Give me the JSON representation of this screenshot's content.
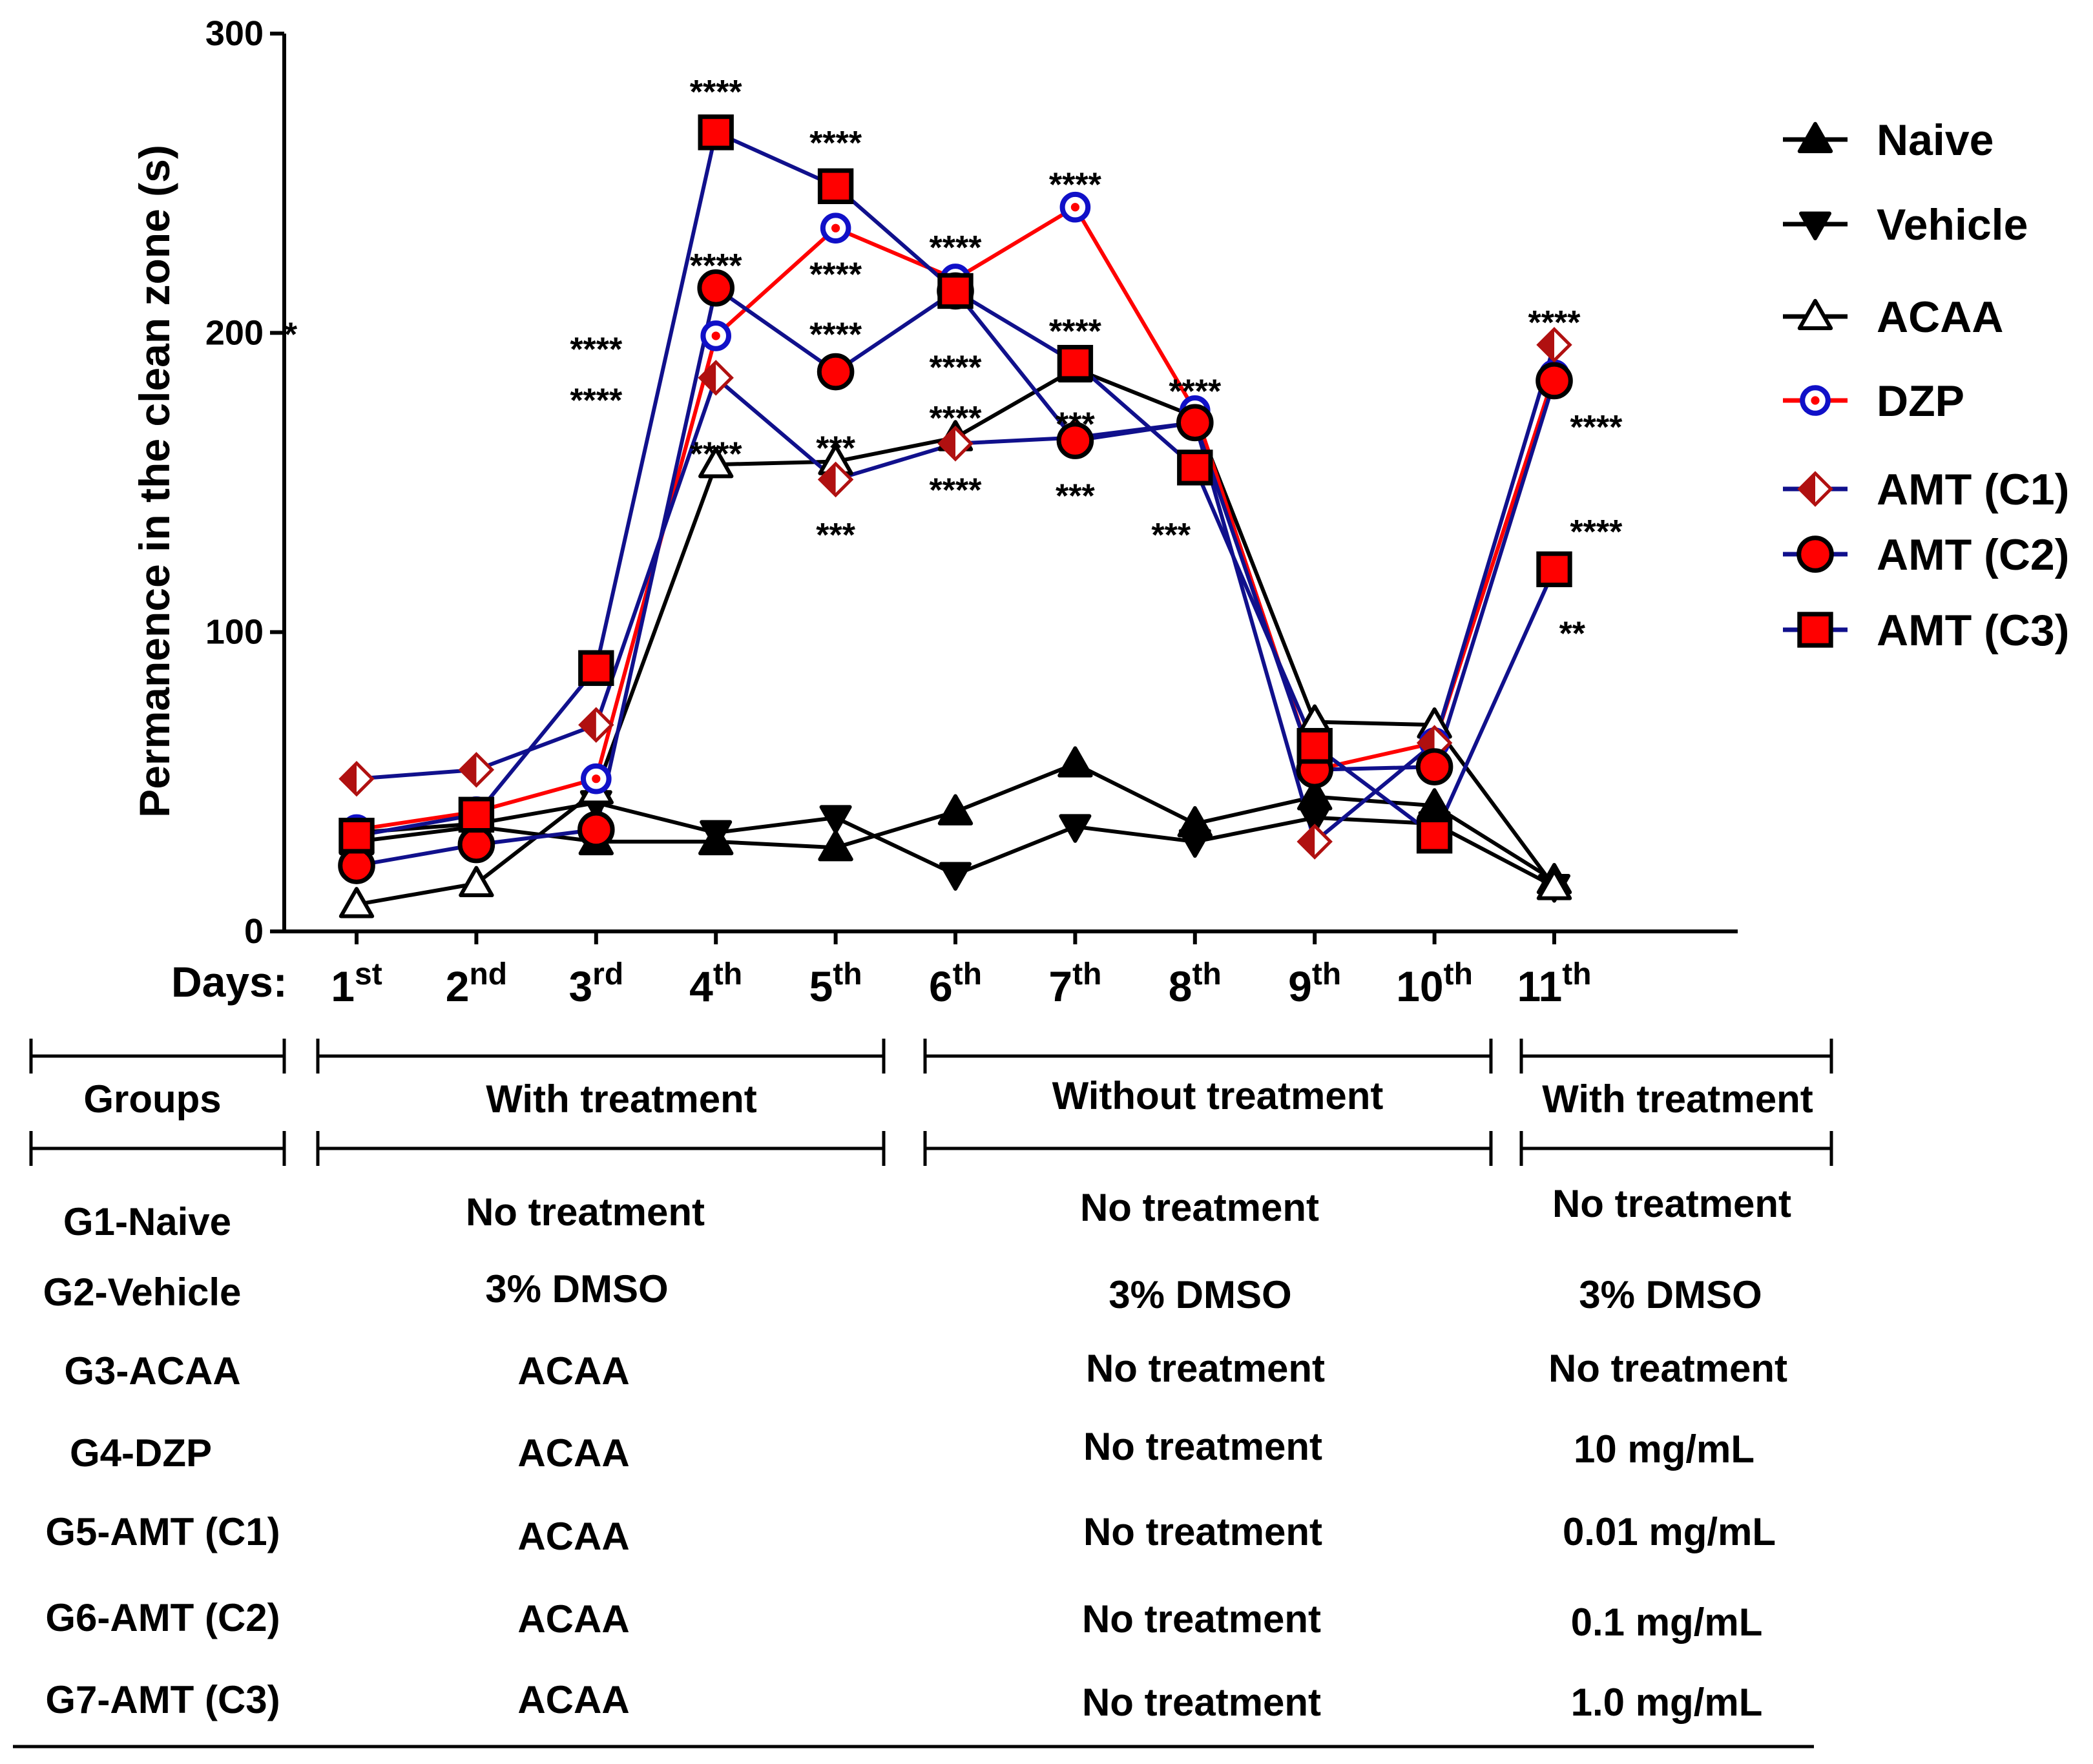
{
  "chart_data": {
    "type": "line",
    "title": "",
    "xlabel": "Days:",
    "ylabel": "Permanence in the clean zone (s)",
    "ylim": [
      0,
      300
    ],
    "yticks": [
      "0",
      "100",
      "200",
      "300"
    ],
    "categories": [
      {
        "num": "1",
        "sup": "st"
      },
      {
        "num": "2",
        "sup": "nd"
      },
      {
        "num": "3",
        "sup": "rd"
      },
      {
        "num": "4",
        "sup": "th"
      },
      {
        "num": "5",
        "sup": "th"
      },
      {
        "num": "6",
        "sup": "th"
      },
      {
        "num": "7",
        "sup": "th"
      },
      {
        "num": "8",
        "sup": "th"
      },
      {
        "num": "9",
        "sup": "th"
      },
      {
        "num": "10",
        "sup": "th"
      },
      {
        "num": "11",
        "sup": "th"
      }
    ],
    "series": [
      {
        "name": "Naive",
        "marker": "tri-up-filled",
        "line_color": "#000000",
        "marker_fill": "#000000",
        "marker_stroke": "#000000",
        "values": [
          30,
          35,
          30,
          30,
          28,
          40,
          56,
          36,
          45,
          42,
          17
        ]
      },
      {
        "name": "Vehicle",
        "marker": "tri-down-filled",
        "line_color": "#000000",
        "marker_fill": "#000000",
        "marker_stroke": "#000000",
        "values": [
          33,
          36,
          43,
          33,
          38,
          19,
          35,
          30,
          38,
          36,
          15
        ]
      },
      {
        "name": "ACAA",
        "marker": "tri-up-open",
        "line_color": "#000000",
        "marker_fill": "#ffffff",
        "marker_stroke": "#000000",
        "values": [
          9,
          16,
          47,
          156,
          157,
          165,
          188,
          172,
          70,
          69,
          15
        ]
      },
      {
        "name": "DZP",
        "marker": "circle-open",
        "line_color": "#ff0000",
        "marker_fill": "#ffffff",
        "marker_stroke": "#1010c8",
        "values": [
          34,
          40,
          51,
          199,
          235,
          218,
          242,
          174,
          54,
          63,
          186
        ]
      },
      {
        "name": "AMT (C1)",
        "marker": "diamond-half",
        "line_color": "#10108c",
        "marker_fill": "#ffffff",
        "marker_stroke": "#b01010",
        "values": [
          51,
          54,
          69,
          185,
          151,
          163,
          165,
          170,
          30,
          63,
          196
        ]
      },
      {
        "name": "AMT (C2)",
        "marker": "circle-filled",
        "line_color": "#10108c",
        "marker_fill": "#ff0000",
        "marker_stroke": "#000000",
        "values": [
          22,
          29,
          34,
          215,
          187,
          214,
          164,
          170,
          54,
          55,
          184
        ]
      },
      {
        "name": "AMT (C3)",
        "marker": "square-filled",
        "line_color": "#10108c",
        "marker_fill": "#ff0000",
        "marker_stroke": "#000000",
        "values": [
          32,
          39,
          88,
          267,
          249,
          214,
          190,
          155,
          62,
          32,
          121
        ]
      }
    ],
    "annotations": [
      {
        "text": "****",
        "day": 4,
        "y": 281
      },
      {
        "text": "****",
        "day": 5,
        "y": 264
      },
      {
        "text": "****",
        "day": 6,
        "y": 229
      },
      {
        "text": "****",
        "day": 7,
        "y": 250
      },
      {
        "text": "****",
        "day": 4,
        "y": 223
      },
      {
        "text": "****",
        "day": 5,
        "y": 220
      },
      {
        "text": "****",
        "day": 3,
        "y": 195
      },
      {
        "text": "****",
        "day": 3,
        "y": 178
      },
      {
        "text": "****",
        "day": 5,
        "y": 200
      },
      {
        "text": "****",
        "day": 6,
        "y": 189
      },
      {
        "text": "****",
        "day": 7,
        "y": 201
      },
      {
        "text": "****",
        "day": 8,
        "y": 181
      },
      {
        "text": "****",
        "day": 4,
        "y": 160
      },
      {
        "text": "***",
        "day": 5,
        "y": 162
      },
      {
        "text": "****",
        "day": 6,
        "y": 172
      },
      {
        "text": "***",
        "day": 7,
        "y": 170
      },
      {
        "text": "****",
        "day": 6,
        "y": 148
      },
      {
        "text": "***",
        "day": 7,
        "y": 146
      },
      {
        "text": "***",
        "day": 5,
        "y": 133
      },
      {
        "text": "***",
        "day": 7.8,
        "y": 133
      },
      {
        "text": "****",
        "day": 11,
        "y": 204
      },
      {
        "text": "****",
        "day": 11.35,
        "y": 169
      },
      {
        "text": "****",
        "day": 11.35,
        "y": 134
      },
      {
        "text": "**",
        "day": 11.15,
        "y": 100
      },
      {
        "text": "*",
        "day": 0.45,
        "y": 200
      }
    ],
    "legend_position": "right"
  },
  "schedule_table": {
    "header": {
      "groups": "Groups",
      "period1": "With treatment",
      "period2": "Without treatment",
      "period3": "With treatment"
    },
    "rows": [
      {
        "group": "G1-Naive",
        "p1": "No treatment",
        "p2": "No treatment",
        "p3": "No treatment"
      },
      {
        "group": "G2-Vehicle",
        "p1": "3% DMSO",
        "p2": "3% DMSO",
        "p3": "3% DMSO"
      },
      {
        "group": "G3-ACAA",
        "p1": "ACAA",
        "p2": "No treatment",
        "p3": "No treatment"
      },
      {
        "group": "G4-DZP",
        "p1": "ACAA",
        "p2": "No treatment",
        "p3": "10 mg/mL"
      },
      {
        "group": "G5-AMT (C1)",
        "p1": "ACAA",
        "p2": "No treatment",
        "p3": "0.01 mg/mL"
      },
      {
        "group": "G6-AMT (C2)",
        "p1": "ACAA",
        "p2": "No treatment",
        "p3": "0.1 mg/mL"
      },
      {
        "group": "G7-AMT (C3)",
        "p1": "ACAA",
        "p2": "No treatment",
        "p3": "1.0 mg/mL"
      }
    ]
  }
}
